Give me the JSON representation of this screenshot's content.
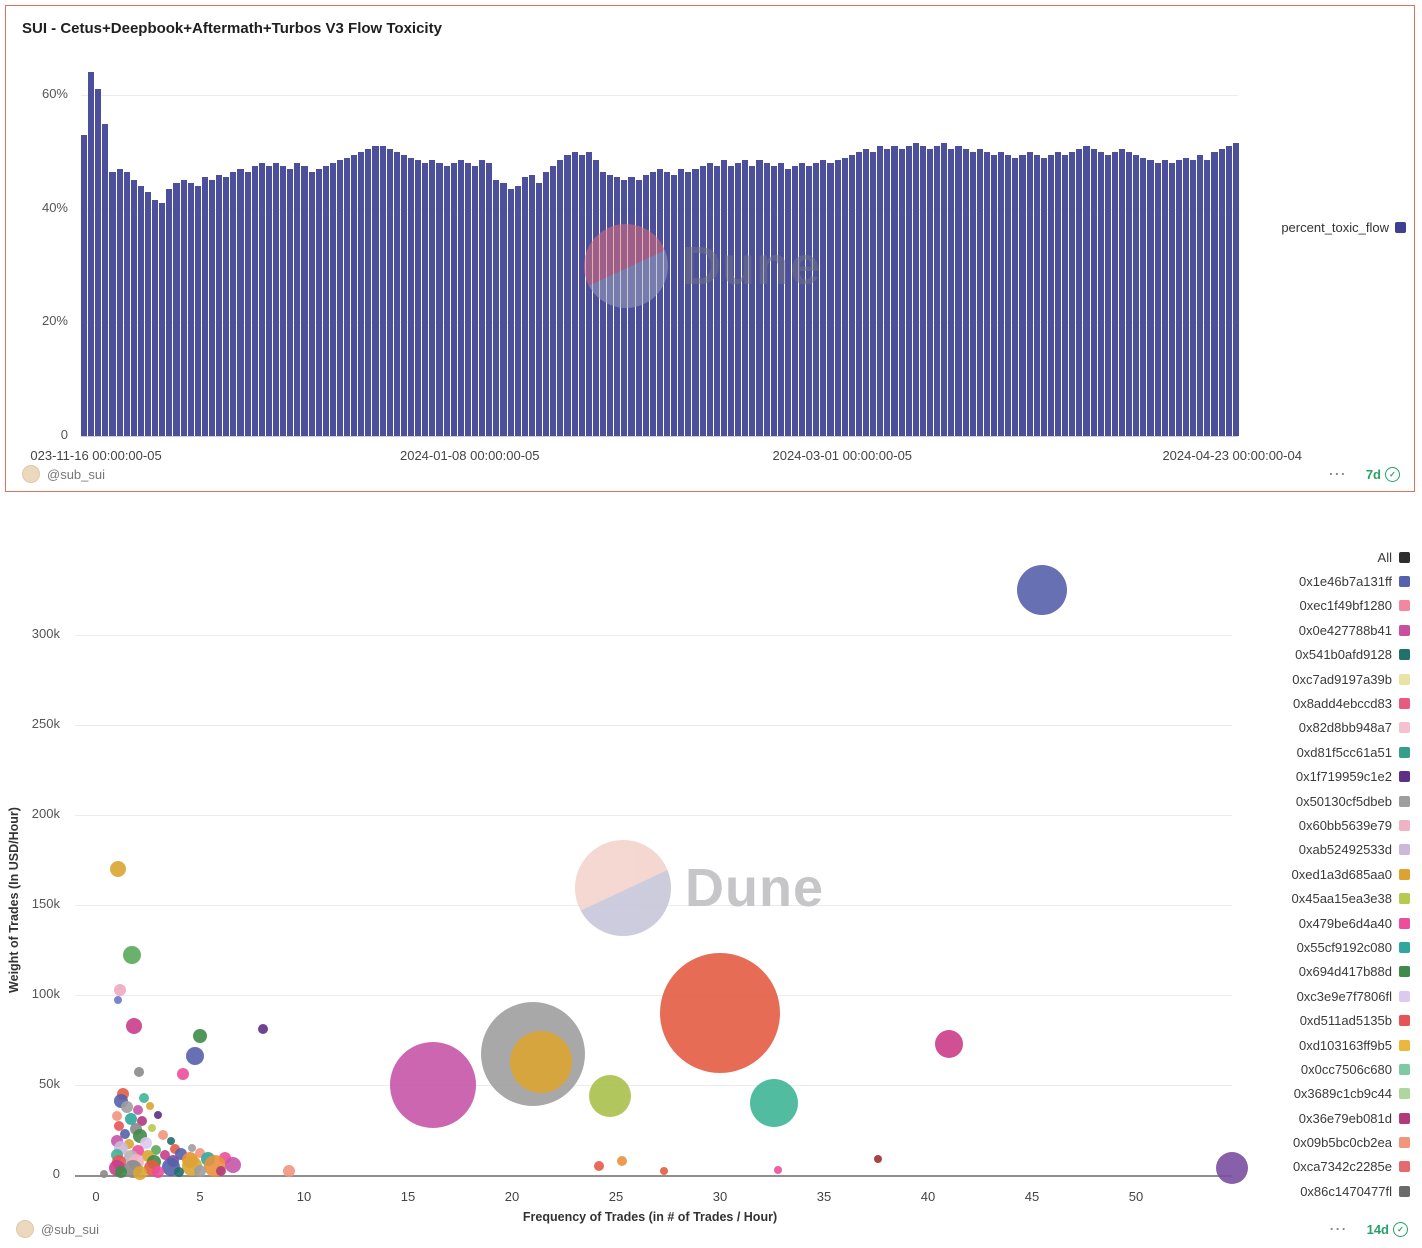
{
  "watermark_text": "Dune",
  "icons": {
    "check": "✓",
    "more": "⋯"
  },
  "top_chart": {
    "title": "SUI - Cetus+Deepbook+Aftermath+Turbos V3 Flow Toxicity",
    "legend_label": "percent_toxic_flow",
    "legend_color": "#3c4090",
    "bar_color": "#4c509c",
    "border_color": "#e2725b",
    "author": "@sub_sui",
    "refresh_badge": "7d"
  },
  "bottom_chart": {
    "author": "@sub_sui",
    "refresh_badge": "14d",
    "xlabel": "Frequency of Trades (in # of Trades / Hour)",
    "ylabel": "Weight of Trades (In USD/Hour)"
  },
  "chart_data": [
    {
      "type": "bar",
      "title": "SUI - Cetus+Deepbook+Aftermath+Turbos V3 Flow Toxicity",
      "series_name": "percent_toxic_flow",
      "ylabel": "",
      "xlabel": "",
      "ylim": [
        0,
        66
      ],
      "grid": true,
      "legend_position": "right",
      "y_tick_values": [
        0,
        20,
        40,
        60
      ],
      "y_tick_labels": [
        "0",
        "20%",
        "40%",
        "60%"
      ],
      "x_tick_labels": [
        "023-11-16 00:00:00-05",
        "2024-01-08 00:00:00-05",
        "2024-03-01 00:00:00-05",
        "2024-04-23 00:00:00-04"
      ],
      "values": [
        53,
        64,
        61,
        55,
        46.5,
        47,
        46.5,
        45,
        44,
        43,
        41.5,
        41,
        43.5,
        44.5,
        45,
        44.5,
        44,
        45.5,
        45,
        46,
        45.5,
        46.5,
        47,
        46.5,
        47.5,
        48,
        47.5,
        48,
        47.5,
        47,
        48,
        47.5,
        46.5,
        47,
        47.5,
        48,
        48.5,
        49,
        49.5,
        50,
        50.5,
        51,
        51,
        50.5,
        50,
        49.5,
        49,
        48.5,
        48,
        48.5,
        48,
        47.5,
        48,
        48.5,
        48,
        47.5,
        48.5,
        48,
        45,
        44.5,
        43.5,
        44,
        45.5,
        46,
        44.5,
        46.5,
        47.5,
        48.5,
        49.5,
        50,
        49.5,
        50,
        48.5,
        46.5,
        46,
        45.5,
        45,
        45.5,
        45,
        46,
        46.5,
        47,
        46.5,
        46,
        47,
        46.5,
        47,
        47.5,
        48,
        47.5,
        48.5,
        47.5,
        48,
        48.5,
        47.5,
        48.5,
        48,
        47.5,
        48,
        47,
        47.5,
        48,
        47.5,
        48,
        48.5,
        48,
        48.5,
        49,
        49.5,
        50,
        50.5,
        50,
        51,
        50.5,
        51,
        50.5,
        51,
        51.5,
        51,
        50.5,
        51,
        51.5,
        50.5,
        51,
        50.5,
        50,
        50.5,
        50,
        49.5,
        50,
        49.5,
        49,
        49.5,
        50,
        49.5,
        49,
        49.5,
        50,
        49.5,
        50,
        50.5,
        51,
        50.5,
        50,
        49.5,
        50,
        50.5,
        50,
        49.5,
        49,
        48.5,
        48,
        48.5,
        48,
        48.5,
        49,
        48.5,
        49.5,
        48.5,
        50,
        50.5,
        51,
        51.5
      ]
    },
    {
      "type": "scatter",
      "title": "",
      "xlabel": "Frequency of Trades (in # of Trades / Hour)",
      "ylabel": "Weight of Trades (In USD/Hour)",
      "xlim": [
        -1,
        55
      ],
      "ylim": [
        0,
        340000
      ],
      "grid": true,
      "legend_position": "right",
      "x_tick_values": [
        0,
        5,
        10,
        15,
        20,
        25,
        30,
        35,
        40,
        45,
        50
      ],
      "y_tick_values": [
        0,
        50000,
        100000,
        150000,
        200000,
        250000,
        300000
      ],
      "y_tick_labels": [
        "0",
        "50k",
        "100k",
        "150k",
        "200k",
        "250k",
        "300k"
      ],
      "legend": [
        {
          "label": "All",
          "color": "#2e2e2e"
        },
        {
          "label": "0x1e46b7a131ff",
          "color": "#5661ab"
        },
        {
          "label": "0xec1f49bf1280",
          "color": "#f2879f"
        },
        {
          "label": "0x0e427788b41",
          "color": "#c8509e"
        },
        {
          "label": "0x541b0afd9128",
          "color": "#20706b"
        },
        {
          "label": "0xc7ad9197a39b",
          "color": "#e9e3a6"
        },
        {
          "label": "0x8add4ebccd83",
          "color": "#e85a7e"
        },
        {
          "label": "0x82d8bb948a7",
          "color": "#f5c0d0"
        },
        {
          "label": "0xd81f5cc61a51",
          "color": "#35a08a"
        },
        {
          "label": "0x1f719959c1e2",
          "color": "#5e2f85"
        },
        {
          "label": "0x50130cf5dbeb",
          "color": "#9e9e9e"
        },
        {
          "label": "0x60bb5639e79",
          "color": "#f0b3c6"
        },
        {
          "label": "0xab52492533d",
          "color": "#cdb8da"
        },
        {
          "label": "0xed1a3d685aa0",
          "color": "#dba432"
        },
        {
          "label": "0x45aa15ea3e38",
          "color": "#b7c94e"
        },
        {
          "label": "0x479be6d4a40",
          "color": "#ec4e9b"
        },
        {
          "label": "0x55cf9192c080",
          "color": "#2fa79e"
        },
        {
          "label": "0x694d417b88d",
          "color": "#3f8b49"
        },
        {
          "label": "0xc3e9e7f7806fl",
          "color": "#dcc9ee"
        },
        {
          "label": "0xd511ad5135b",
          "color": "#e85456"
        },
        {
          "label": "0xd103163ff9b5",
          "color": "#e9b83d"
        },
        {
          "label": "0x0cc7506c680",
          "color": "#7fc9a5"
        },
        {
          "label": "0x3689c1cb9c44",
          "color": "#aed6a0"
        },
        {
          "label": "0x36e79eb081d",
          "color": "#b13a7c"
        },
        {
          "label": "0x09b5bc0cb2ea",
          "color": "#f2957d"
        },
        {
          "label": "0xca7342c2285e",
          "color": "#e56a6e"
        },
        {
          "label": "0x86c1470477fl",
          "color": "#6a6a6a"
        }
      ],
      "bubbles": [
        {
          "x": 45.5,
          "y": 325000,
          "r": 25,
          "c": "#5661ab"
        },
        {
          "x": 30.0,
          "y": 90000,
          "r": 60,
          "c": "#e45c44"
        },
        {
          "x": 21.0,
          "y": 67000,
          "r": 52,
          "c": "#9e9e9e"
        },
        {
          "x": 21.4,
          "y": 63000,
          "r": 31,
          "c": "#dba432"
        },
        {
          "x": 16.2,
          "y": 50000,
          "r": 43,
          "c": "#c855a8"
        },
        {
          "x": 24.7,
          "y": 44000,
          "r": 21,
          "c": "#a8c04a"
        },
        {
          "x": 32.6,
          "y": 40000,
          "r": 24,
          "c": "#3eb596"
        },
        {
          "x": 41.0,
          "y": 73000,
          "r": 14,
          "c": "#cc3d88"
        },
        {
          "x": 54.6,
          "y": 4000,
          "r": 16,
          "c": "#7b4fa0"
        },
        {
          "x": 1.05,
          "y": 170000,
          "r": 8,
          "c": "#dba432"
        },
        {
          "x": 1.75,
          "y": 122000,
          "r": 9,
          "c": "#5aa85c"
        },
        {
          "x": 1.15,
          "y": 103000,
          "r": 6,
          "c": "#f0a8c0"
        },
        {
          "x": 1.05,
          "y": 97000,
          "r": 4,
          "c": "#6a79c8"
        },
        {
          "x": 1.85,
          "y": 83000,
          "r": 8,
          "c": "#c93d8c"
        },
        {
          "x": 8.05,
          "y": 81000,
          "r": 5,
          "c": "#5e2f85"
        },
        {
          "x": 5.0,
          "y": 77000,
          "r": 7,
          "c": "#3f8b49"
        },
        {
          "x": 4.75,
          "y": 66000,
          "r": 9,
          "c": "#5661ab"
        },
        {
          "x": 4.2,
          "y": 56000,
          "r": 6,
          "c": "#ec4e9b"
        },
        {
          "x": 2.05,
          "y": 57000,
          "r": 5,
          "c": "#8a8a8a"
        },
        {
          "x": 1.3,
          "y": 45000,
          "r": 6,
          "c": "#e45c44"
        },
        {
          "x": 1.2,
          "y": 41000,
          "r": 7,
          "c": "#5661ab"
        },
        {
          "x": 2.3,
          "y": 43000,
          "r": 5,
          "c": "#3eb596"
        },
        {
          "x": 1.5,
          "y": 38000,
          "r": 6,
          "c": "#9e9e9e"
        },
        {
          "x": 2.0,
          "y": 36000,
          "r": 5,
          "c": "#c855a8"
        },
        {
          "x": 2.6,
          "y": 38500,
          "r": 4,
          "c": "#dba432"
        },
        {
          "x": 1.0,
          "y": 33000,
          "r": 5,
          "c": "#f2957d"
        },
        {
          "x": 1.7,
          "y": 31000,
          "r": 6,
          "c": "#2fa79e"
        },
        {
          "x": 2.2,
          "y": 30000,
          "r": 5,
          "c": "#b13a7c"
        },
        {
          "x": 3.0,
          "y": 33500,
          "r": 4,
          "c": "#5e2f85"
        },
        {
          "x": 1.1,
          "y": 27000,
          "r": 5,
          "c": "#e85456"
        },
        {
          "x": 1.9,
          "y": 25500,
          "r": 6,
          "c": "#8a8a8a"
        },
        {
          "x": 2.7,
          "y": 26000,
          "r": 4,
          "c": "#b7c94e"
        },
        {
          "x": 1.4,
          "y": 23000,
          "r": 5,
          "c": "#5661ab"
        },
        {
          "x": 2.1,
          "y": 21500,
          "r": 7,
          "c": "#3f8b49"
        },
        {
          "x": 3.2,
          "y": 22000,
          "r": 5,
          "c": "#f2957d"
        },
        {
          "x": 1.0,
          "y": 19000,
          "r": 6,
          "c": "#c855a8"
        },
        {
          "x": 1.6,
          "y": 17500,
          "r": 5,
          "c": "#dba432"
        },
        {
          "x": 2.4,
          "y": 18000,
          "r": 6,
          "c": "#dcc9ee"
        },
        {
          "x": 3.6,
          "y": 19000,
          "r": 4,
          "c": "#20706b"
        },
        {
          "x": 1.2,
          "y": 15000,
          "r": 7,
          "c": "#cdb8da"
        },
        {
          "x": 2.0,
          "y": 13500,
          "r": 6,
          "c": "#ec4e9b"
        },
        {
          "x": 2.9,
          "y": 14000,
          "r": 5,
          "c": "#5aa85c"
        },
        {
          "x": 3.8,
          "y": 14500,
          "r": 5,
          "c": "#e45c44"
        },
        {
          "x": 4.6,
          "y": 15000,
          "r": 4,
          "c": "#9e9e9e"
        },
        {
          "x": 1.0,
          "y": 11000,
          "r": 6,
          "c": "#3eb596"
        },
        {
          "x": 1.7,
          "y": 10000,
          "r": 7,
          "c": "#b5b5b5"
        },
        {
          "x": 2.5,
          "y": 10500,
          "r": 6,
          "c": "#dba432"
        },
        {
          "x": 3.3,
          "y": 11000,
          "r": 5,
          "c": "#c93d8c"
        },
        {
          "x": 4.1,
          "y": 11500,
          "r": 6,
          "c": "#5661ab"
        },
        {
          "x": 5.0,
          "y": 12000,
          "r": 5,
          "c": "#f2957d"
        },
        {
          "x": 1.1,
          "y": 7500,
          "r": 7,
          "c": "#e85456"
        },
        {
          "x": 1.9,
          "y": 7000,
          "r": 8,
          "c": "#f0b3c6"
        },
        {
          "x": 2.8,
          "y": 7500,
          "r": 7,
          "c": "#3f8b49"
        },
        {
          "x": 3.7,
          "y": 8000,
          "r": 6,
          "c": "#7b4fa0"
        },
        {
          "x": 4.5,
          "y": 8500,
          "r": 8,
          "c": "#e9913e"
        },
        {
          "x": 5.4,
          "y": 9000,
          "r": 7,
          "c": "#2fa79e"
        },
        {
          "x": 6.2,
          "y": 9500,
          "r": 6,
          "c": "#ec4e9b"
        },
        {
          "x": 1.0,
          "y": 4000,
          "r": 8,
          "c": "#c93d8c"
        },
        {
          "x": 1.8,
          "y": 3500,
          "r": 9,
          "c": "#8a8a8a"
        },
        {
          "x": 2.7,
          "y": 4000,
          "r": 8,
          "c": "#e45c44"
        },
        {
          "x": 3.6,
          "y": 4500,
          "r": 9,
          "c": "#5661ab"
        },
        {
          "x": 4.6,
          "y": 5000,
          "r": 10,
          "c": "#dba432"
        },
        {
          "x": 5.7,
          "y": 5000,
          "r": 11,
          "c": "#e9913e"
        },
        {
          "x": 6.6,
          "y": 5500,
          "r": 8,
          "c": "#c855a8"
        },
        {
          "x": 1.2,
          "y": 1500,
          "r": 6,
          "c": "#3f8b49"
        },
        {
          "x": 2.1,
          "y": 1200,
          "r": 7,
          "c": "#dba432"
        },
        {
          "x": 3.0,
          "y": 1500,
          "r": 6,
          "c": "#ec4e9b"
        },
        {
          "x": 4.0,
          "y": 1800,
          "r": 5,
          "c": "#20706b"
        },
        {
          "x": 5.0,
          "y": 2000,
          "r": 6,
          "c": "#9e9e9e"
        },
        {
          "x": 6.0,
          "y": 2200,
          "r": 5,
          "c": "#b13a7c"
        },
        {
          "x": 0.4,
          "y": 800,
          "r": 4,
          "c": "#8a8a8a"
        },
        {
          "x": 9.3,
          "y": 2000,
          "r": 6,
          "c": "#f2957d"
        },
        {
          "x": 24.2,
          "y": 5000,
          "r": 5,
          "c": "#e45c44"
        },
        {
          "x": 25.3,
          "y": 8000,
          "r": 5,
          "c": "#e9913e"
        },
        {
          "x": 27.3,
          "y": 2000,
          "r": 4,
          "c": "#e45c44"
        },
        {
          "x": 32.8,
          "y": 3000,
          "r": 4,
          "c": "#ec4e9b"
        },
        {
          "x": 37.6,
          "y": 9000,
          "r": 4,
          "c": "#a03030"
        }
      ]
    }
  ]
}
